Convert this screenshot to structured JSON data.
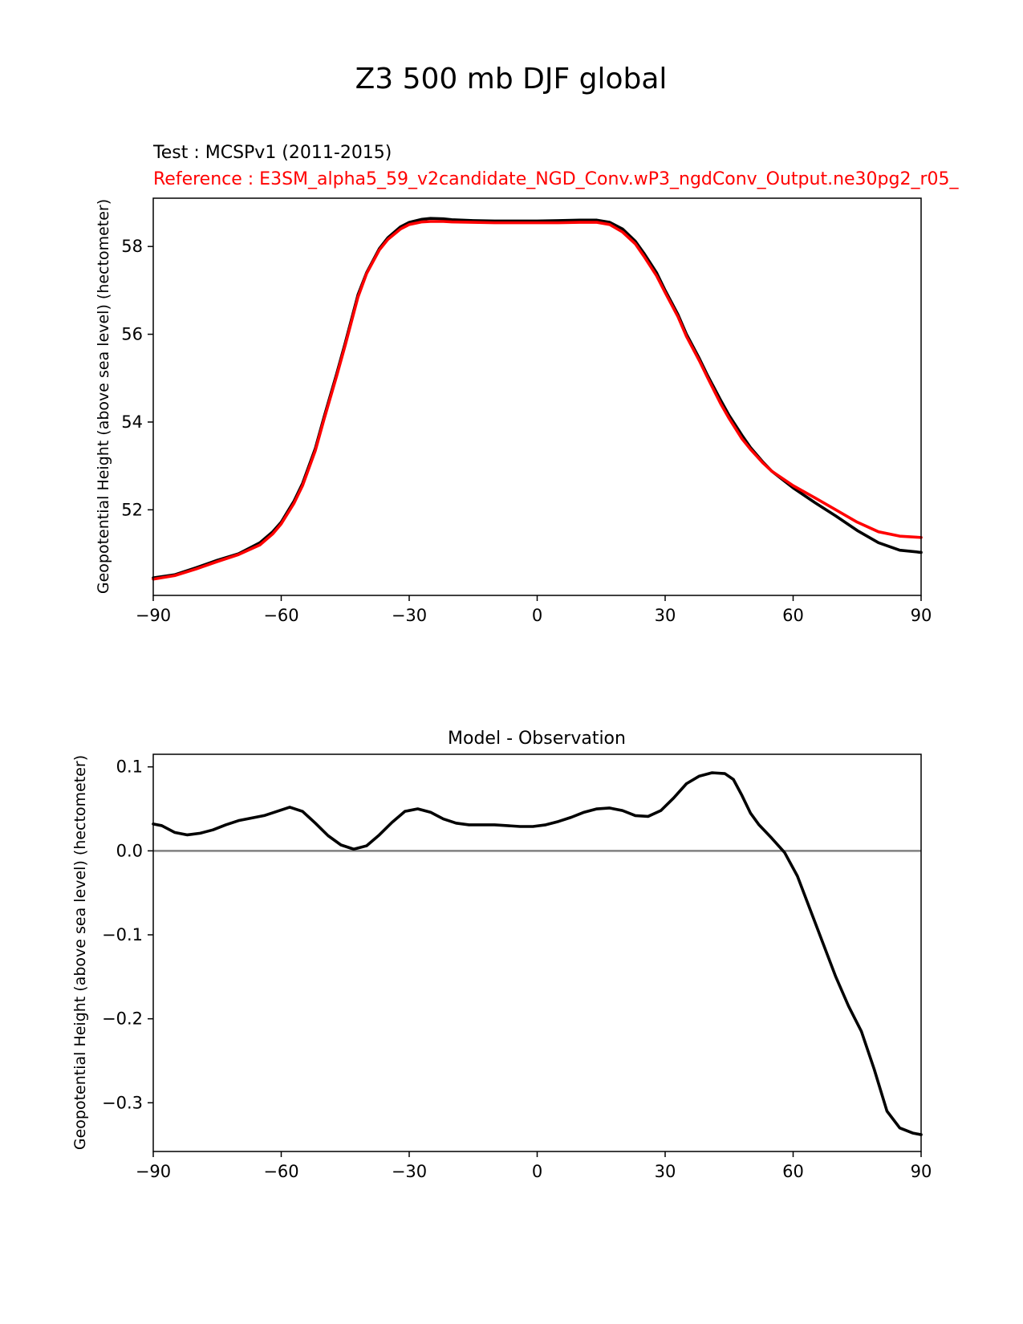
{
  "figure": {
    "title": "Z3 500 mb DJF global"
  },
  "chart_data": [
    {
      "type": "line",
      "test_label": "Test : MCSPv1 (2011-2015)",
      "reference_label": "Reference : E3SM_alpha5_59_v2candidate_NGD_Conv.wP3_ngdConv_Output.ne30pg2_r05_",
      "xlabel": "",
      "ylabel": "Geopotential Height (above sea level) (hectometer)",
      "xlim": [
        -90,
        90
      ],
      "ylim": [
        50.05,
        59.1
      ],
      "xticks": [
        -90,
        -60,
        -30,
        0,
        30,
        60,
        90
      ],
      "xtick_labels": [
        "−90",
        "−60",
        "−30",
        "0",
        "30",
        "60",
        "90"
      ],
      "yticks": [
        52,
        54,
        56,
        58
      ],
      "ytick_labels": [
        "52",
        "54",
        "56",
        "58"
      ],
      "x": [
        -90,
        -85,
        -80,
        -75,
        -70,
        -65,
        -62,
        -60,
        -57,
        -55,
        -52,
        -50,
        -47,
        -45,
        -42,
        -40,
        -37,
        -35,
        -32,
        -30,
        -27,
        -25,
        -22,
        -20,
        -15,
        -10,
        -5,
        0,
        5,
        10,
        14,
        17,
        20,
        23,
        25,
        28,
        30,
        33,
        35,
        38,
        40,
        43,
        45,
        48,
        50,
        53,
        55,
        60,
        65,
        70,
        75,
        80,
        85,
        90
      ],
      "series": [
        {
          "name": "Test",
          "color": "#000000",
          "values": [
            50.45,
            50.52,
            50.68,
            50.85,
            51.0,
            51.25,
            51.5,
            51.72,
            52.2,
            52.6,
            53.4,
            54.1,
            55.1,
            55.8,
            56.9,
            57.4,
            57.95,
            58.2,
            58.45,
            58.55,
            58.62,
            58.64,
            58.63,
            58.61,
            58.59,
            58.58,
            58.58,
            58.58,
            58.59,
            58.6,
            58.6,
            58.55,
            58.4,
            58.12,
            57.85,
            57.4,
            57.0,
            56.45,
            56.0,
            55.45,
            55.05,
            54.5,
            54.15,
            53.7,
            53.42,
            53.08,
            52.88,
            52.5,
            52.17,
            51.86,
            51.53,
            51.25,
            51.08,
            51.03
          ]
        },
        {
          "name": "Reference",
          "color": "#ff0000",
          "values": [
            50.42,
            50.5,
            50.65,
            50.82,
            50.98,
            51.2,
            51.45,
            51.68,
            52.15,
            52.55,
            53.35,
            54.05,
            55.05,
            55.75,
            56.85,
            57.38,
            57.92,
            58.16,
            58.4,
            58.5,
            58.56,
            58.57,
            58.57,
            58.56,
            58.55,
            58.54,
            58.54,
            58.54,
            58.54,
            58.55,
            58.55,
            58.5,
            58.33,
            58.06,
            57.78,
            57.33,
            56.95,
            56.4,
            55.95,
            55.4,
            55.0,
            54.42,
            54.08,
            53.62,
            53.38,
            53.06,
            52.88,
            52.55,
            52.28,
            52.0,
            51.72,
            51.5,
            51.4,
            51.37
          ]
        }
      ]
    },
    {
      "type": "line",
      "title": "Model - Observation",
      "xlabel": "",
      "ylabel": "Geopotential Height (above sea level) (hectometer)",
      "xlim": [
        -90,
        90
      ],
      "ylim": [
        -0.358,
        0.115
      ],
      "xticks": [
        -90,
        -60,
        -30,
        0,
        30,
        60,
        90
      ],
      "xtick_labels": [
        "−90",
        "−60",
        "−30",
        "0",
        "30",
        "60",
        "90"
      ],
      "yticks": [
        0.1,
        0.0,
        -0.1,
        -0.2,
        -0.3
      ],
      "ytick_labels": [
        "0.1",
        "0.0",
        "−0.1",
        "−0.2",
        "−0.3"
      ],
      "zero_line": {
        "value": 0.0,
        "color": "#808080"
      },
      "x": [
        -90,
        -88,
        -85,
        -82,
        -79,
        -76,
        -73,
        -70,
        -67,
        -64,
        -61,
        -58,
        -55,
        -52,
        -49,
        -46,
        -43,
        -40,
        -37,
        -34,
        -31,
        -28,
        -25,
        -22,
        -19,
        -16,
        -13,
        -10,
        -7,
        -4,
        -1,
        2,
        5,
        8,
        11,
        14,
        17,
        20,
        23,
        26,
        29,
        32,
        35,
        38,
        41,
        44,
        46,
        48,
        50,
        52,
        55,
        58,
        61,
        64,
        67,
        70,
        73,
        76,
        79,
        82,
        85,
        88,
        90
      ],
      "series": [
        {
          "name": "Model - Observation",
          "color": "#000000",
          "values": [
            0.032,
            0.03,
            0.022,
            0.019,
            0.021,
            0.025,
            0.031,
            0.036,
            0.039,
            0.042,
            0.047,
            0.052,
            0.047,
            0.033,
            0.018,
            0.007,
            0.002,
            0.006,
            0.019,
            0.034,
            0.047,
            0.05,
            0.046,
            0.038,
            0.033,
            0.031,
            0.031,
            0.031,
            0.03,
            0.029,
            0.029,
            0.031,
            0.035,
            0.04,
            0.046,
            0.05,
            0.051,
            0.048,
            0.042,
            0.041,
            0.048,
            0.063,
            0.08,
            0.089,
            0.093,
            0.092,
            0.085,
            0.066,
            0.045,
            0.031,
            0.015,
            -0.002,
            -0.03,
            -0.07,
            -0.11,
            -0.15,
            -0.185,
            -0.215,
            -0.26,
            -0.31,
            -0.33,
            -0.336,
            -0.338
          ]
        }
      ]
    }
  ]
}
